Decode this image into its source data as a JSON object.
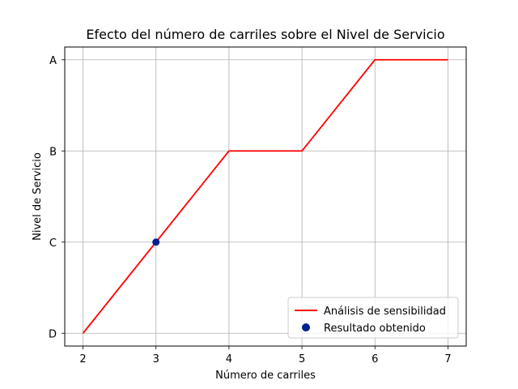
{
  "chart_data": {
    "type": "line",
    "title": "Efecto del número de carriles sobre el Nivel de Servicio",
    "xlabel": "Número de carriles",
    "ylabel": "Nivel de Servicio",
    "x_ticks": [
      "2",
      "3",
      "4",
      "5",
      "6",
      "7"
    ],
    "y_categories": [
      "D",
      "C",
      "B",
      "A"
    ],
    "xlim": [
      1.75,
      7.25
    ],
    "ylim": [
      -0.14,
      3.14
    ],
    "grid": true,
    "legend_position": "lower-right",
    "series": [
      {
        "name": "Análisis de sensibilidad",
        "kind": "line",
        "color": "#ff0000",
        "x": [
          2,
          3,
          4,
          5,
          6,
          7
        ],
        "y": [
          "D",
          "C",
          "B",
          "B",
          "A",
          "A"
        ]
      },
      {
        "name": "Resultado obtenido",
        "kind": "scatter",
        "color": "#00208f",
        "x": [
          3
        ],
        "y": [
          "C"
        ]
      }
    ]
  }
}
